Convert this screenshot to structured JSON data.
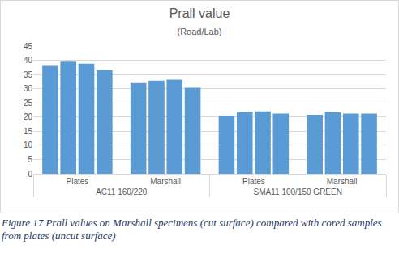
{
  "chart_data": {
    "type": "bar",
    "title": "Prall value",
    "subtitle": "(Road/Lab)",
    "groups": [
      "AC11 160/220",
      "AC11 160/220",
      "SMA11 100/150 GREEN",
      "SMA11 100/150 GREEN"
    ],
    "categories": [
      "Plates",
      "Marshall",
      "Plates",
      "Marshall"
    ],
    "series": [
      {
        "color": "#5b9bd5",
        "values": [
          38,
          32,
          20.5,
          20.8
        ]
      },
      {
        "color": "#5b9bd5",
        "values": [
          39.5,
          32.8,
          21.7,
          21.7
        ]
      },
      {
        "color": "#5b9bd5",
        "values": [
          38.8,
          33.2,
          22,
          21.2
        ]
      },
      {
        "color": "#5b9bd5",
        "values": [
          36.5,
          30.3,
          21.2,
          21.2
        ]
      }
    ],
    "ylim": [
      0,
      45
    ],
    "yticks": [
      0,
      5,
      10,
      15,
      20,
      25,
      30,
      35,
      40,
      45
    ],
    "grid": true,
    "caption": "Figure 17 Prall values on Marshall specimens (cut surface) compared with cored samples from plates (uncut surface)"
  }
}
